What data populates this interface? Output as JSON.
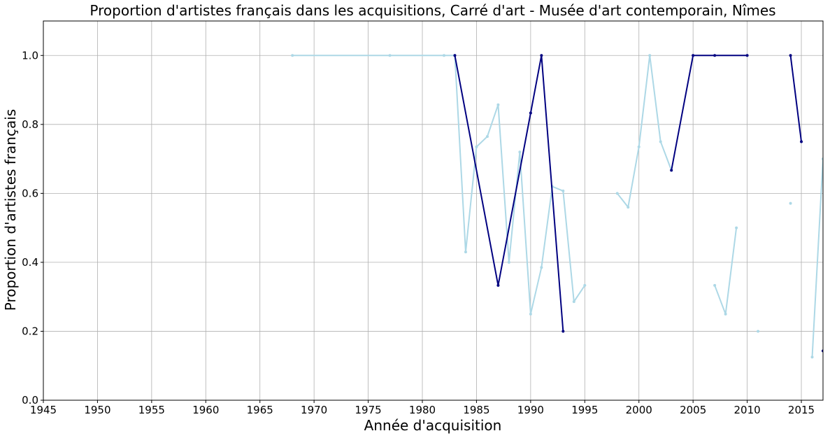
{
  "chart_data": {
    "type": "line",
    "title": "Proportion d'artistes français dans les acquisitions, Carré d'art - Musée d'art contemporain, Nîmes",
    "xlabel": "Année d'acquisition",
    "ylabel": "Proportion d'artistes français",
    "xlim": [
      1945,
      2017
    ],
    "ylim": [
      0,
      1.1
    ],
    "xticks": [
      1945,
      1950,
      1955,
      1960,
      1965,
      1970,
      1975,
      1980,
      1985,
      1990,
      1995,
      2000,
      2005,
      2010,
      2015
    ],
    "yticks": [
      0.0,
      0.2,
      0.4,
      0.6,
      0.8,
      1.0
    ],
    "grid": true,
    "series": [
      {
        "color": "#add8e6",
        "points": [
          [
            1968,
            1.0
          ],
          [
            1977,
            1.0
          ],
          [
            1982,
            1.0
          ],
          [
            1983,
            1.0
          ],
          [
            1984,
            0.43
          ],
          [
            1985,
            0.735
          ],
          [
            1986,
            0.765
          ],
          [
            1987,
            0.857
          ],
          [
            1988,
            0.4
          ],
          [
            1989,
            0.72
          ],
          [
            1990,
            0.25
          ],
          [
            1991,
            0.385
          ],
          [
            1992,
            0.62
          ],
          [
            1993,
            0.607
          ],
          [
            1994,
            0.286
          ],
          [
            1995,
            0.333
          ],
          null,
          [
            1998,
            0.6
          ],
          [
            1999,
            0.56
          ],
          [
            2000,
            0.735
          ],
          [
            2001,
            1.0
          ],
          [
            2002,
            0.75
          ],
          [
            2003,
            0.667
          ],
          null,
          [
            2007,
            0.333
          ],
          [
            2008,
            0.25
          ],
          [
            2009,
            0.5
          ],
          null,
          [
            2011,
            0.2
          ],
          null,
          [
            2014,
            0.571
          ],
          null,
          [
            2016,
            0.125
          ],
          [
            2017,
            0.7
          ]
        ]
      },
      {
        "color": "#000080",
        "points": [
          [
            1983,
            1.0
          ],
          [
            1987,
            0.333
          ],
          [
            1990,
            0.833
          ],
          [
            1991,
            1.0
          ],
          [
            1993,
            0.2
          ],
          null,
          [
            2003,
            0.667
          ],
          [
            2005,
            1.0
          ],
          [
            2007,
            1.0
          ],
          [
            2010,
            1.0
          ],
          null,
          [
            2014,
            1.0
          ],
          [
            2015,
            0.75
          ],
          null,
          [
            2017,
            0.143
          ]
        ]
      }
    ]
  }
}
